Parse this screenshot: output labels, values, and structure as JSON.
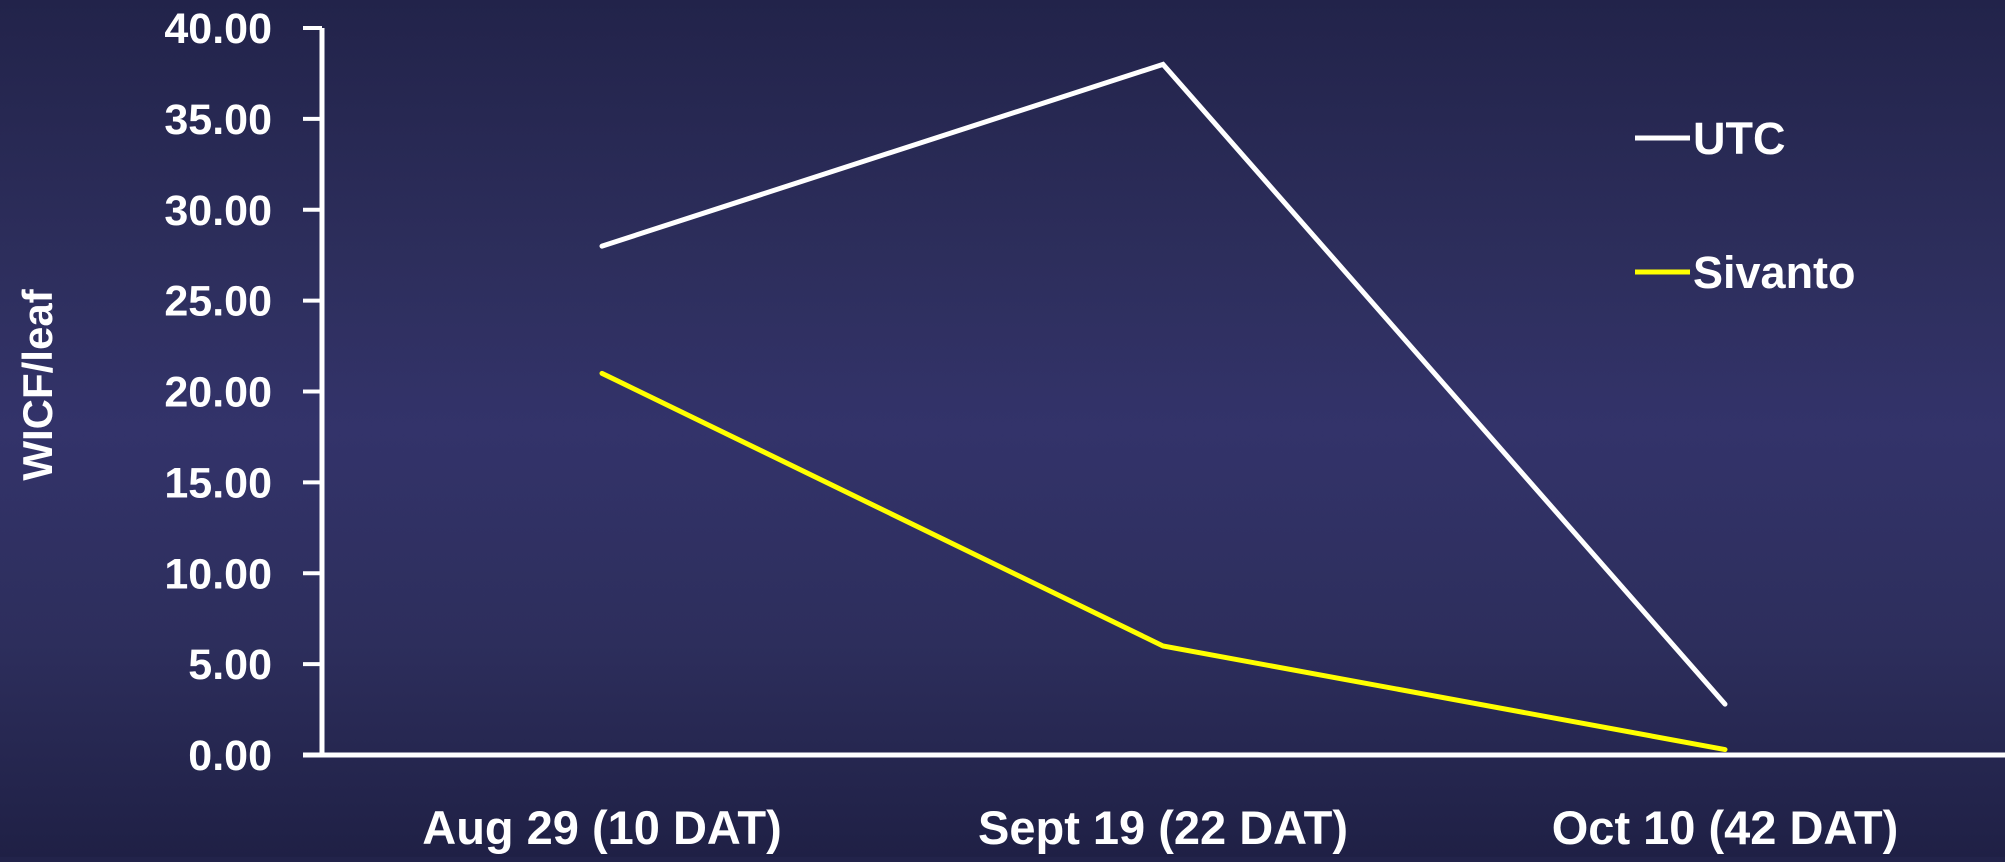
{
  "chart_data": {
    "type": "line",
    "title": "",
    "xlabel": "",
    "ylabel": "WICF/leaf",
    "categories": [
      "Aug 29 (10 DAT)",
      "Sept 19 (22 DAT)",
      "Oct 10 (42 DAT)"
    ],
    "ylim": [
      0,
      40
    ],
    "yticks": [
      "0.00",
      "5.00",
      "10.00",
      "15.00",
      "20.00",
      "25.00",
      "30.00",
      "35.00",
      "40.00"
    ],
    "grid": false,
    "legend_position": "top-right",
    "series": [
      {
        "name": "UTC",
        "values": [
          28,
          38,
          2.8
        ],
        "color": "#ffffff"
      },
      {
        "name": "Sivanto",
        "values": [
          21,
          6,
          0.3
        ],
        "color": "#ffff00"
      }
    ]
  }
}
